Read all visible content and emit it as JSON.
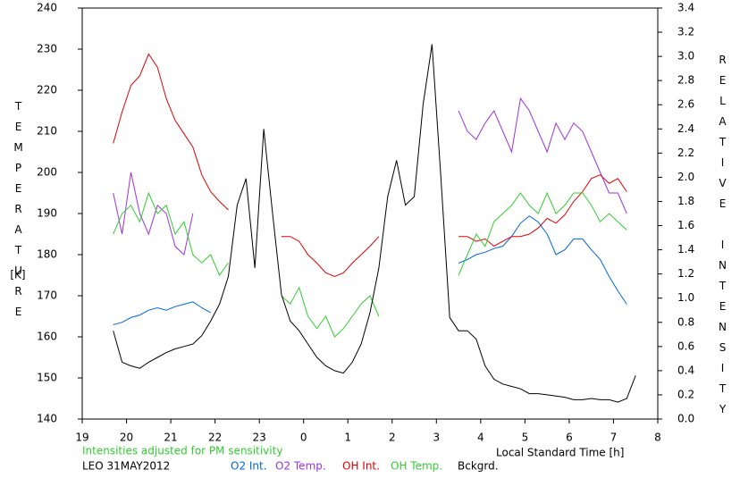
{
  "chart_data": {
    "type": "line",
    "x_label": "Local Standard Time [h]",
    "y_label": "TEMPERATURE",
    "y_unit": "[K]",
    "y2_label": "RELATIVE INTENSITY",
    "note": "Intensities adjusted for PM sensitivity",
    "station": "LEO 31MAY2012",
    "xlim": [
      19,
      32
    ],
    "xticks": [
      19,
      20,
      21,
      22,
      23,
      {
        "value": 24,
        "label": "0"
      },
      {
        "value": 25,
        "label": "1"
      },
      {
        "value": 26,
        "label": "2"
      },
      {
        "value": 27,
        "label": "3"
      },
      {
        "value": 28,
        "label": "4"
      },
      {
        "value": 29,
        "label": "5"
      },
      {
        "value": 30,
        "label": "6"
      },
      {
        "value": 31,
        "label": "7"
      },
      {
        "value": 32,
        "label": "8"
      }
    ],
    "ylim": [
      140,
      240
    ],
    "yticks": [
      140,
      150,
      160,
      170,
      180,
      190,
      200,
      210,
      220,
      230,
      240
    ],
    "y2lim": [
      0,
      3.4
    ],
    "y2ticks": [
      {
        "value": 0,
        "label": "0.0"
      },
      0.2,
      0.4,
      0.6,
      0.8,
      {
        "value": 1,
        "label": "1.0"
      },
      1.2,
      1.4,
      1.6,
      1.8,
      {
        "value": 2,
        "label": "2.0"
      },
      2.2,
      2.4,
      2.6,
      2.8,
      {
        "value": 3,
        "label": "3.0"
      },
      3.2,
      3.4
    ],
    "x": [
      19.7,
      19.9,
      20.1,
      20.3,
      20.5,
      20.7,
      20.9,
      21.1,
      21.3,
      21.5,
      21.7,
      21.9,
      22.1,
      22.3,
      22.5,
      22.7,
      22.9,
      23.1,
      23.3,
      23.5,
      23.7,
      23.9,
      24.1,
      24.3,
      24.5,
      24.7,
      24.9,
      25.1,
      25.3,
      25.5,
      25.7,
      25.9,
      26.1,
      26.3,
      26.5,
      26.7,
      26.9,
      27.1,
      27.3,
      27.5,
      27.7,
      27.9,
      28.1,
      28.3,
      28.5,
      28.7,
      28.9,
      29.1,
      29.3,
      29.5,
      29.7,
      29.9,
      30.1,
      30.3,
      30.5,
      30.7,
      30.9,
      31.1,
      31.3,
      31.5
    ],
    "series": [
      {
        "name": "O2 Int.",
        "color": "#0066dd",
        "axis": "y2",
        "values": [
          0.78,
          0.8,
          0.84,
          0.86,
          0.9,
          0.92,
          0.9,
          0.93,
          0.95,
          0.97,
          0.92,
          0.88,
          null,
          null,
          null,
          null,
          null,
          null,
          null,
          null,
          null,
          null,
          null,
          null,
          null,
          null,
          null,
          null,
          null,
          null,
          null,
          null,
          null,
          null,
          null,
          null,
          null,
          null,
          null,
          1.29,
          1.32,
          1.36,
          1.38,
          1.41,
          1.43,
          1.51,
          1.62,
          1.68,
          1.63,
          1.53,
          1.36,
          1.4,
          1.49,
          1.49,
          1.4,
          1.32,
          1.18,
          1.06,
          0.95,
          null
        ]
      },
      {
        "name": "O2 Temp.",
        "color": "#9933dd",
        "values": [
          195,
          185,
          200,
          190,
          185,
          192,
          190,
          182,
          180,
          190,
          null,
          null,
          null,
          null,
          null,
          null,
          null,
          null,
          null,
          null,
          null,
          null,
          null,
          null,
          null,
          null,
          null,
          null,
          null,
          null,
          null,
          null,
          null,
          null,
          null,
          null,
          null,
          null,
          null,
          215,
          210,
          208,
          212,
          215,
          210,
          205,
          218,
          215,
          210,
          205,
          212,
          208,
          212,
          210,
          205,
          200,
          195,
          195,
          190,
          null
        ]
      },
      {
        "name": "OH Int.",
        "color": "#dd0000",
        "axis": "y2",
        "values": [
          2.28,
          2.54,
          2.76,
          2.84,
          3.02,
          2.91,
          2.65,
          2.47,
          2.36,
          2.25,
          2.02,
          1.88,
          1.8,
          1.73,
          null,
          null,
          null,
          null,
          null,
          1.51,
          1.51,
          1.47,
          1.36,
          1.29,
          1.21,
          1.18,
          1.21,
          1.29,
          1.36,
          1.43,
          1.51,
          null,
          null,
          null,
          null,
          null,
          null,
          null,
          null,
          1.51,
          1.51,
          1.47,
          1.49,
          1.43,
          1.47,
          1.51,
          1.51,
          1.53,
          1.58,
          1.66,
          1.62,
          1.69,
          1.8,
          1.88,
          1.99,
          2.02,
          1.95,
          1.99,
          1.88,
          null
        ]
      },
      {
        "name": "OH Temp.",
        "color": "#33cc33",
        "values": [
          185,
          190,
          192,
          188,
          195,
          190,
          192,
          185,
          188,
          180,
          178,
          180,
          175,
          178,
          null,
          null,
          null,
          null,
          null,
          170,
          168,
          172,
          165,
          162,
          165,
          160,
          162,
          165,
          168,
          170,
          165,
          null,
          null,
          null,
          null,
          null,
          null,
          null,
          null,
          175,
          180,
          185,
          182,
          188,
          190,
          192,
          195,
          192,
          190,
          195,
          190,
          192,
          195,
          195,
          192,
          188,
          190,
          188,
          186,
          null
        ]
      },
      {
        "name": "Bckgrd.",
        "color": "#000000",
        "axis": "y2",
        "values": [
          0.73,
          0.47,
          0.44,
          0.42,
          0.47,
          0.51,
          0.55,
          0.58,
          0.6,
          0.62,
          0.69,
          0.81,
          0.95,
          1.18,
          1.77,
          1.99,
          1.25,
          2.4,
          1.7,
          1.03,
          0.81,
          0.73,
          0.62,
          0.51,
          0.44,
          0.4,
          0.38,
          0.47,
          0.62,
          0.88,
          1.25,
          1.84,
          2.14,
          1.77,
          1.84,
          2.6,
          3.1,
          2.0,
          0.84,
          0.73,
          0.73,
          0.66,
          0.44,
          0.33,
          0.29,
          0.27,
          0.25,
          0.21,
          0.21,
          0.2,
          0.19,
          0.18,
          0.16,
          0.16,
          0.17,
          0.16,
          0.16,
          0.14,
          0.17,
          0.36
        ]
      }
    ]
  }
}
